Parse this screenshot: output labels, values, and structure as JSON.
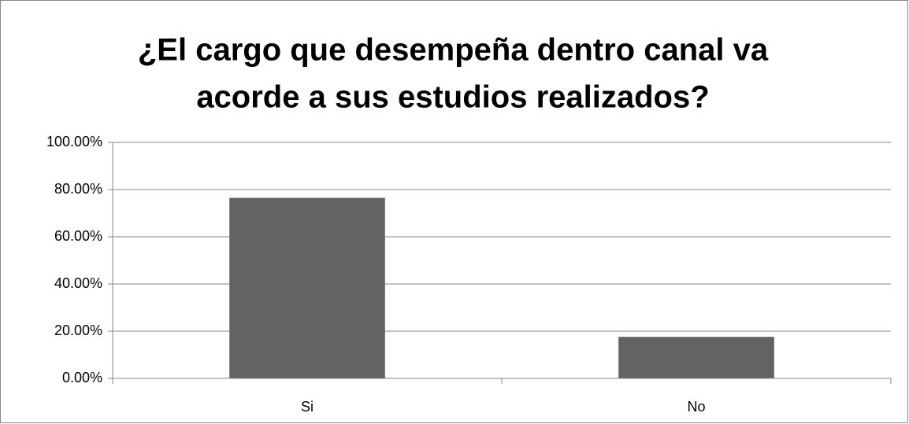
{
  "chart_data": {
    "type": "bar",
    "title": [
      "¿El cargo que desempeña dentro canal va",
      "acorde a sus estudios realizados?"
    ],
    "categories": [
      "Si",
      "No"
    ],
    "values": [
      76.5,
      17.6
    ],
    "color": "#636363",
    "ylim": [
      0,
      100
    ],
    "yticks": [
      {
        "value": 0,
        "label": "0.00%"
      },
      {
        "value": 20,
        "label": "20.00%"
      },
      {
        "value": 40,
        "label": "40.00%"
      },
      {
        "value": 60,
        "label": "60.00%"
      },
      {
        "value": 80,
        "label": "80.00%"
      },
      {
        "value": 100,
        "label": "100.00%"
      }
    ],
    "grid": true
  }
}
